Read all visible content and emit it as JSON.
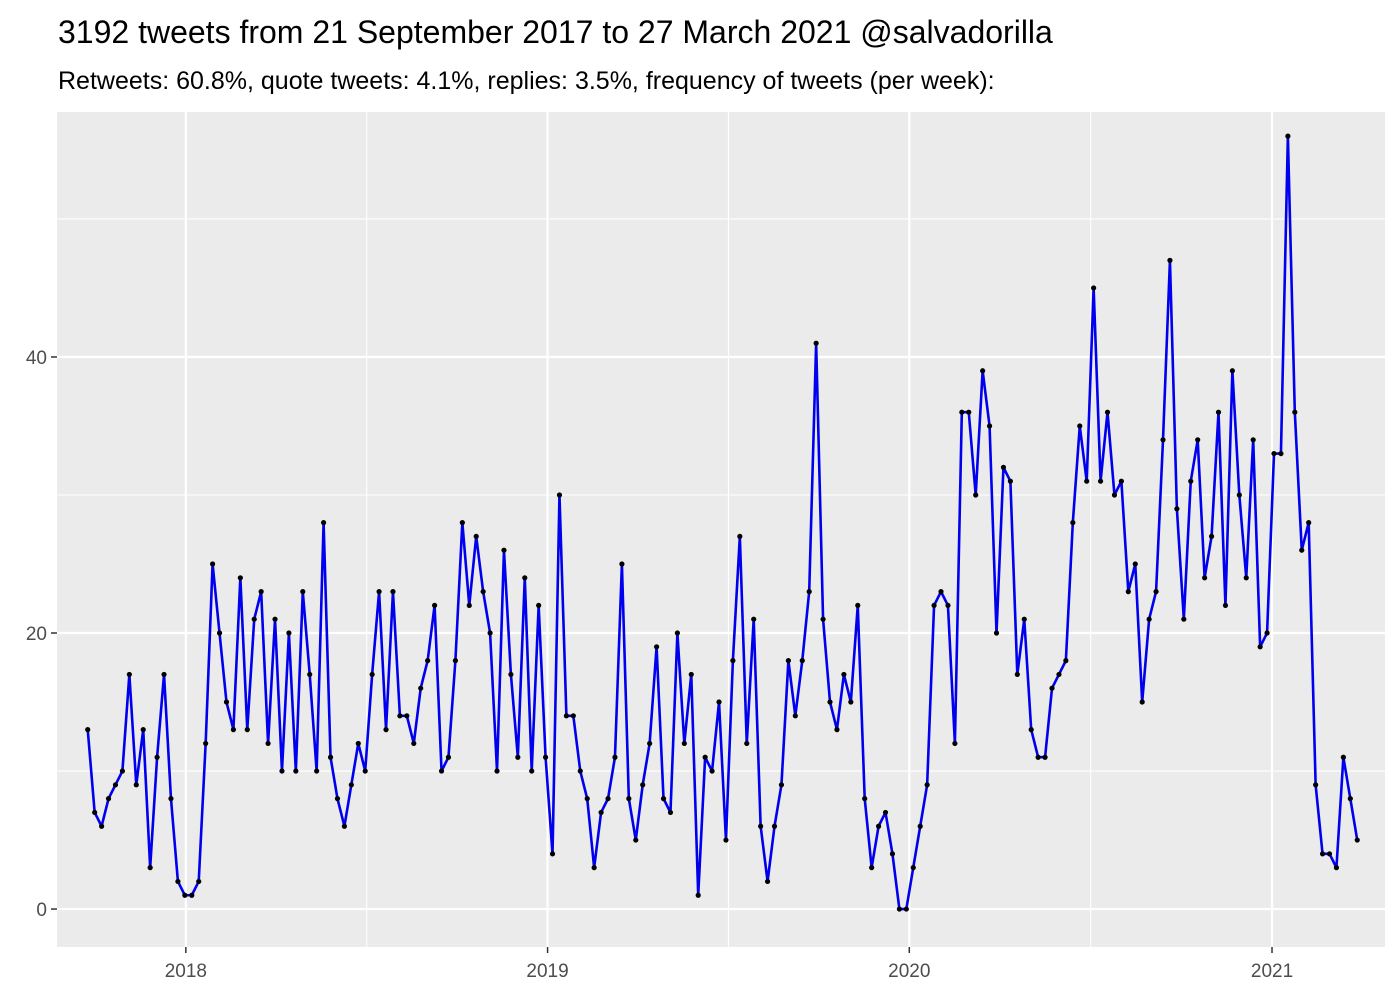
{
  "chart_data": {
    "type": "line",
    "title": "3192 tweets from 21 September 2017 to 27 March 2021 @salvadorilla",
    "subtitle": "Retweets: 60.8%, quote tweets: 4.1%, replies: 3.5%, frequency of tweets (per week):",
    "xlabel": "",
    "ylabel": "",
    "x_start": "2017-09-24",
    "x_step_days": 7,
    "xlim": [
      "2017-08-24",
      "2021-04-25"
    ],
    "ylim": [
      -2.75,
      57.75
    ],
    "x_ticks": [
      {
        "label": "2018",
        "date": "2018-01-01"
      },
      {
        "label": "2019",
        "date": "2019-01-01"
      },
      {
        "label": "2020",
        "date": "2020-01-01"
      },
      {
        "label": "2021",
        "date": "2021-01-01"
      }
    ],
    "y_ticks": [
      0,
      20,
      40
    ],
    "grid": true,
    "legend": "none",
    "line_color": "#0000ee",
    "point_color": "#000000",
    "panel_color": "#ebebeb",
    "grid_color": "#ffffff",
    "series": [
      {
        "values": [
          13,
          7,
          6,
          8,
          9,
          10,
          17,
          9,
          13,
          3,
          11,
          17,
          8,
          2,
          1,
          1,
          2,
          12,
          25,
          20,
          15,
          13,
          24,
          13,
          21,
          23,
          12,
          21,
          10,
          20,
          10,
          23,
          17,
          10,
          28,
          11,
          8,
          6,
          9,
          12,
          10,
          17,
          23,
          13,
          23,
          14,
          14,
          12,
          16,
          18,
          22,
          10,
          11,
          18,
          28,
          22,
          27,
          23,
          20,
          10,
          26,
          17,
          11,
          24,
          10,
          22,
          11,
          4,
          30,
          14,
          14,
          10,
          8,
          3,
          7,
          8,
          11,
          25,
          8,
          5,
          9,
          12,
          19,
          8,
          7,
          20,
          12,
          17,
          1,
          11,
          10,
          15,
          5,
          18,
          27,
          12,
          21,
          6,
          2,
          6,
          9,
          18,
          14,
          18,
          23,
          41,
          21,
          15,
          13,
          17,
          15,
          22,
          8,
          3,
          6,
          7,
          4,
          0,
          0,
          3,
          6,
          9,
          22,
          23,
          22,
          12,
          36,
          36,
          30,
          39,
          35,
          20,
          32,
          31,
          17,
          21,
          13,
          11,
          11,
          16,
          17,
          18,
          28,
          35,
          31,
          45,
          31,
          36,
          30,
          31,
          23,
          25,
          15,
          21,
          23,
          34,
          47,
          29,
          21,
          31,
          34,
          24,
          27,
          36,
          22,
          39,
          30,
          24,
          34,
          19,
          20,
          33,
          33,
          56,
          36,
          26,
          28,
          9,
          4,
          4,
          3,
          11,
          8,
          5
        ]
      }
    ]
  }
}
